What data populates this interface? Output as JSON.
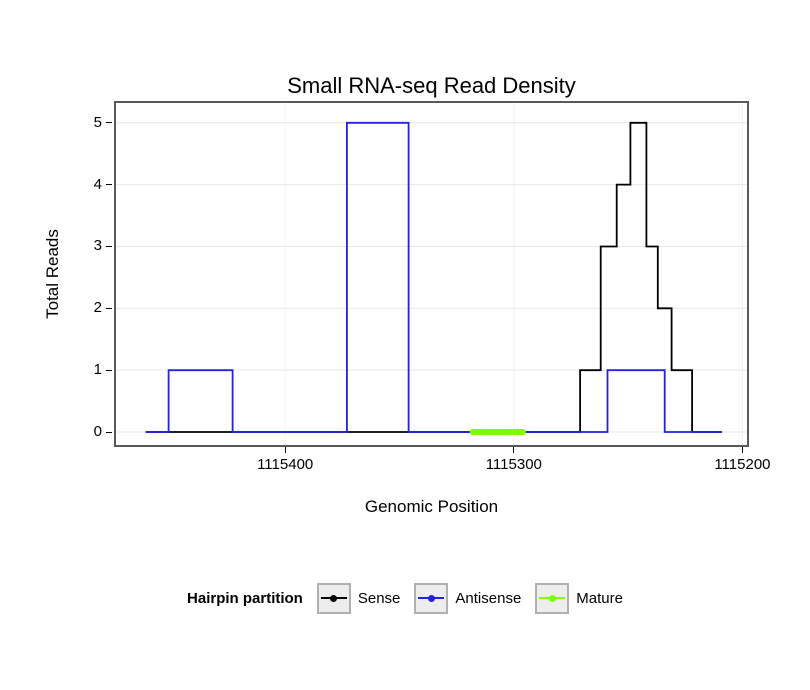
{
  "chart_data": {
    "type": "line",
    "title": "Small RNA-seq Read Density",
    "xlabel": "Genomic Position",
    "ylabel": "Total Reads",
    "x_reversed": true,
    "xlim": [
      1115474,
      1115198
    ],
    "ylim": [
      -0.21,
      5.32
    ],
    "x_ticks": [
      1115400,
      1115300,
      1115200
    ],
    "y_ticks": [
      0,
      1,
      2,
      3,
      4,
      5
    ],
    "grid": {
      "h_color": "#e8e8e8",
      "v_color": "#f2f2f2"
    },
    "series": [
      {
        "name": "Sense",
        "color": "#000000",
        "width": 1.8,
        "linecap": "butt",
        "points": [
          [
            1115461,
            0
          ],
          [
            1115271,
            0
          ],
          [
            1115271,
            1
          ],
          [
            1115262,
            1
          ],
          [
            1115262,
            3
          ],
          [
            1115255,
            3
          ],
          [
            1115255,
            4
          ],
          [
            1115249,
            4
          ],
          [
            1115249,
            5
          ],
          [
            1115242,
            5
          ],
          [
            1115242,
            3
          ],
          [
            1115237,
            3
          ],
          [
            1115237,
            2
          ],
          [
            1115231,
            2
          ],
          [
            1115231,
            1
          ],
          [
            1115222,
            1
          ],
          [
            1115222,
            0
          ],
          [
            1115209,
            0
          ]
        ]
      },
      {
        "name": "Antisense",
        "color": "#2222DD",
        "width": 1.8,
        "linecap": "butt",
        "points": [
          [
            1115461,
            0
          ],
          [
            1115451,
            0
          ],
          [
            1115451,
            1
          ],
          [
            1115423,
            1
          ],
          [
            1115423,
            0
          ],
          [
            1115373,
            0
          ],
          [
            1115373,
            5
          ],
          [
            1115346,
            5
          ],
          [
            1115346,
            0
          ],
          [
            1115259,
            0
          ],
          [
            1115259,
            1
          ],
          [
            1115234,
            1
          ],
          [
            1115234,
            0
          ],
          [
            1115209,
            0
          ]
        ]
      },
      {
        "name": "Mature",
        "color": "#7CFC00",
        "width": 6,
        "linecap": "round",
        "points": [
          [
            1115318,
            0
          ],
          [
            1115296,
            0
          ]
        ]
      }
    ]
  },
  "legend": {
    "title": "Hairpin partition",
    "entries": [
      {
        "label": "Sense",
        "color": "#000000"
      },
      {
        "label": "Antisense",
        "color": "#2222DD"
      },
      {
        "label": "Mature",
        "color": "#7CFC00"
      }
    ]
  }
}
